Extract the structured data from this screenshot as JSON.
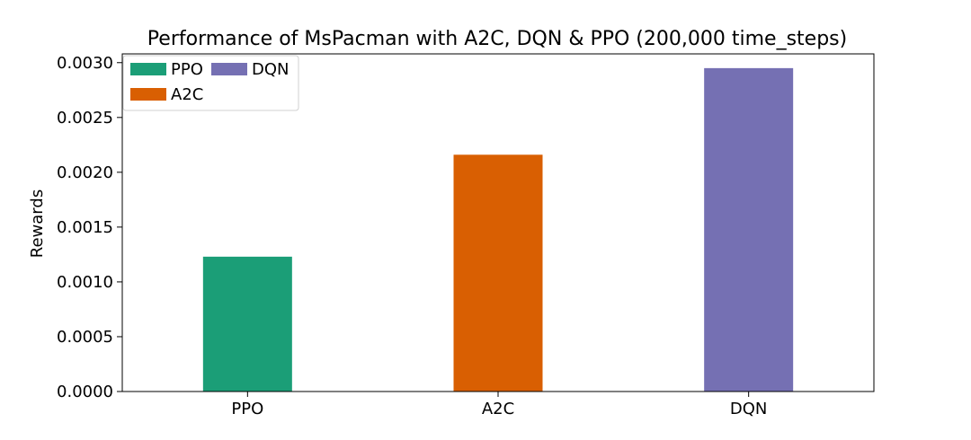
{
  "chart_data": {
    "type": "bar",
    "title": "Performance of MsPacman with A2C, DQN & PPO (200,000 time_steps)",
    "xlabel": "",
    "ylabel": "Rewards",
    "categories": [
      "PPO",
      "A2C",
      "DQN"
    ],
    "values": [
      0.00123,
      0.00216,
      0.00295
    ],
    "colors": [
      "#1b9e77",
      "#d95f02",
      "#7570b3"
    ],
    "ylim": [
      0,
      0.00308
    ],
    "yticks": [
      "0.0000",
      "0.0005",
      "0.0010",
      "0.0015",
      "0.0020",
      "0.0025",
      "0.0030"
    ],
    "ytick_values": [
      0,
      0.0005,
      0.001,
      0.0015,
      0.002,
      0.0025,
      0.003
    ],
    "grid": false,
    "legend": {
      "placement": "top-left",
      "entries": [
        {
          "label": "PPO",
          "color": "#1b9e77"
        },
        {
          "label": "DQN",
          "color": "#7570b3"
        },
        {
          "label": "A2C",
          "color": "#d95f02"
        }
      ]
    }
  }
}
